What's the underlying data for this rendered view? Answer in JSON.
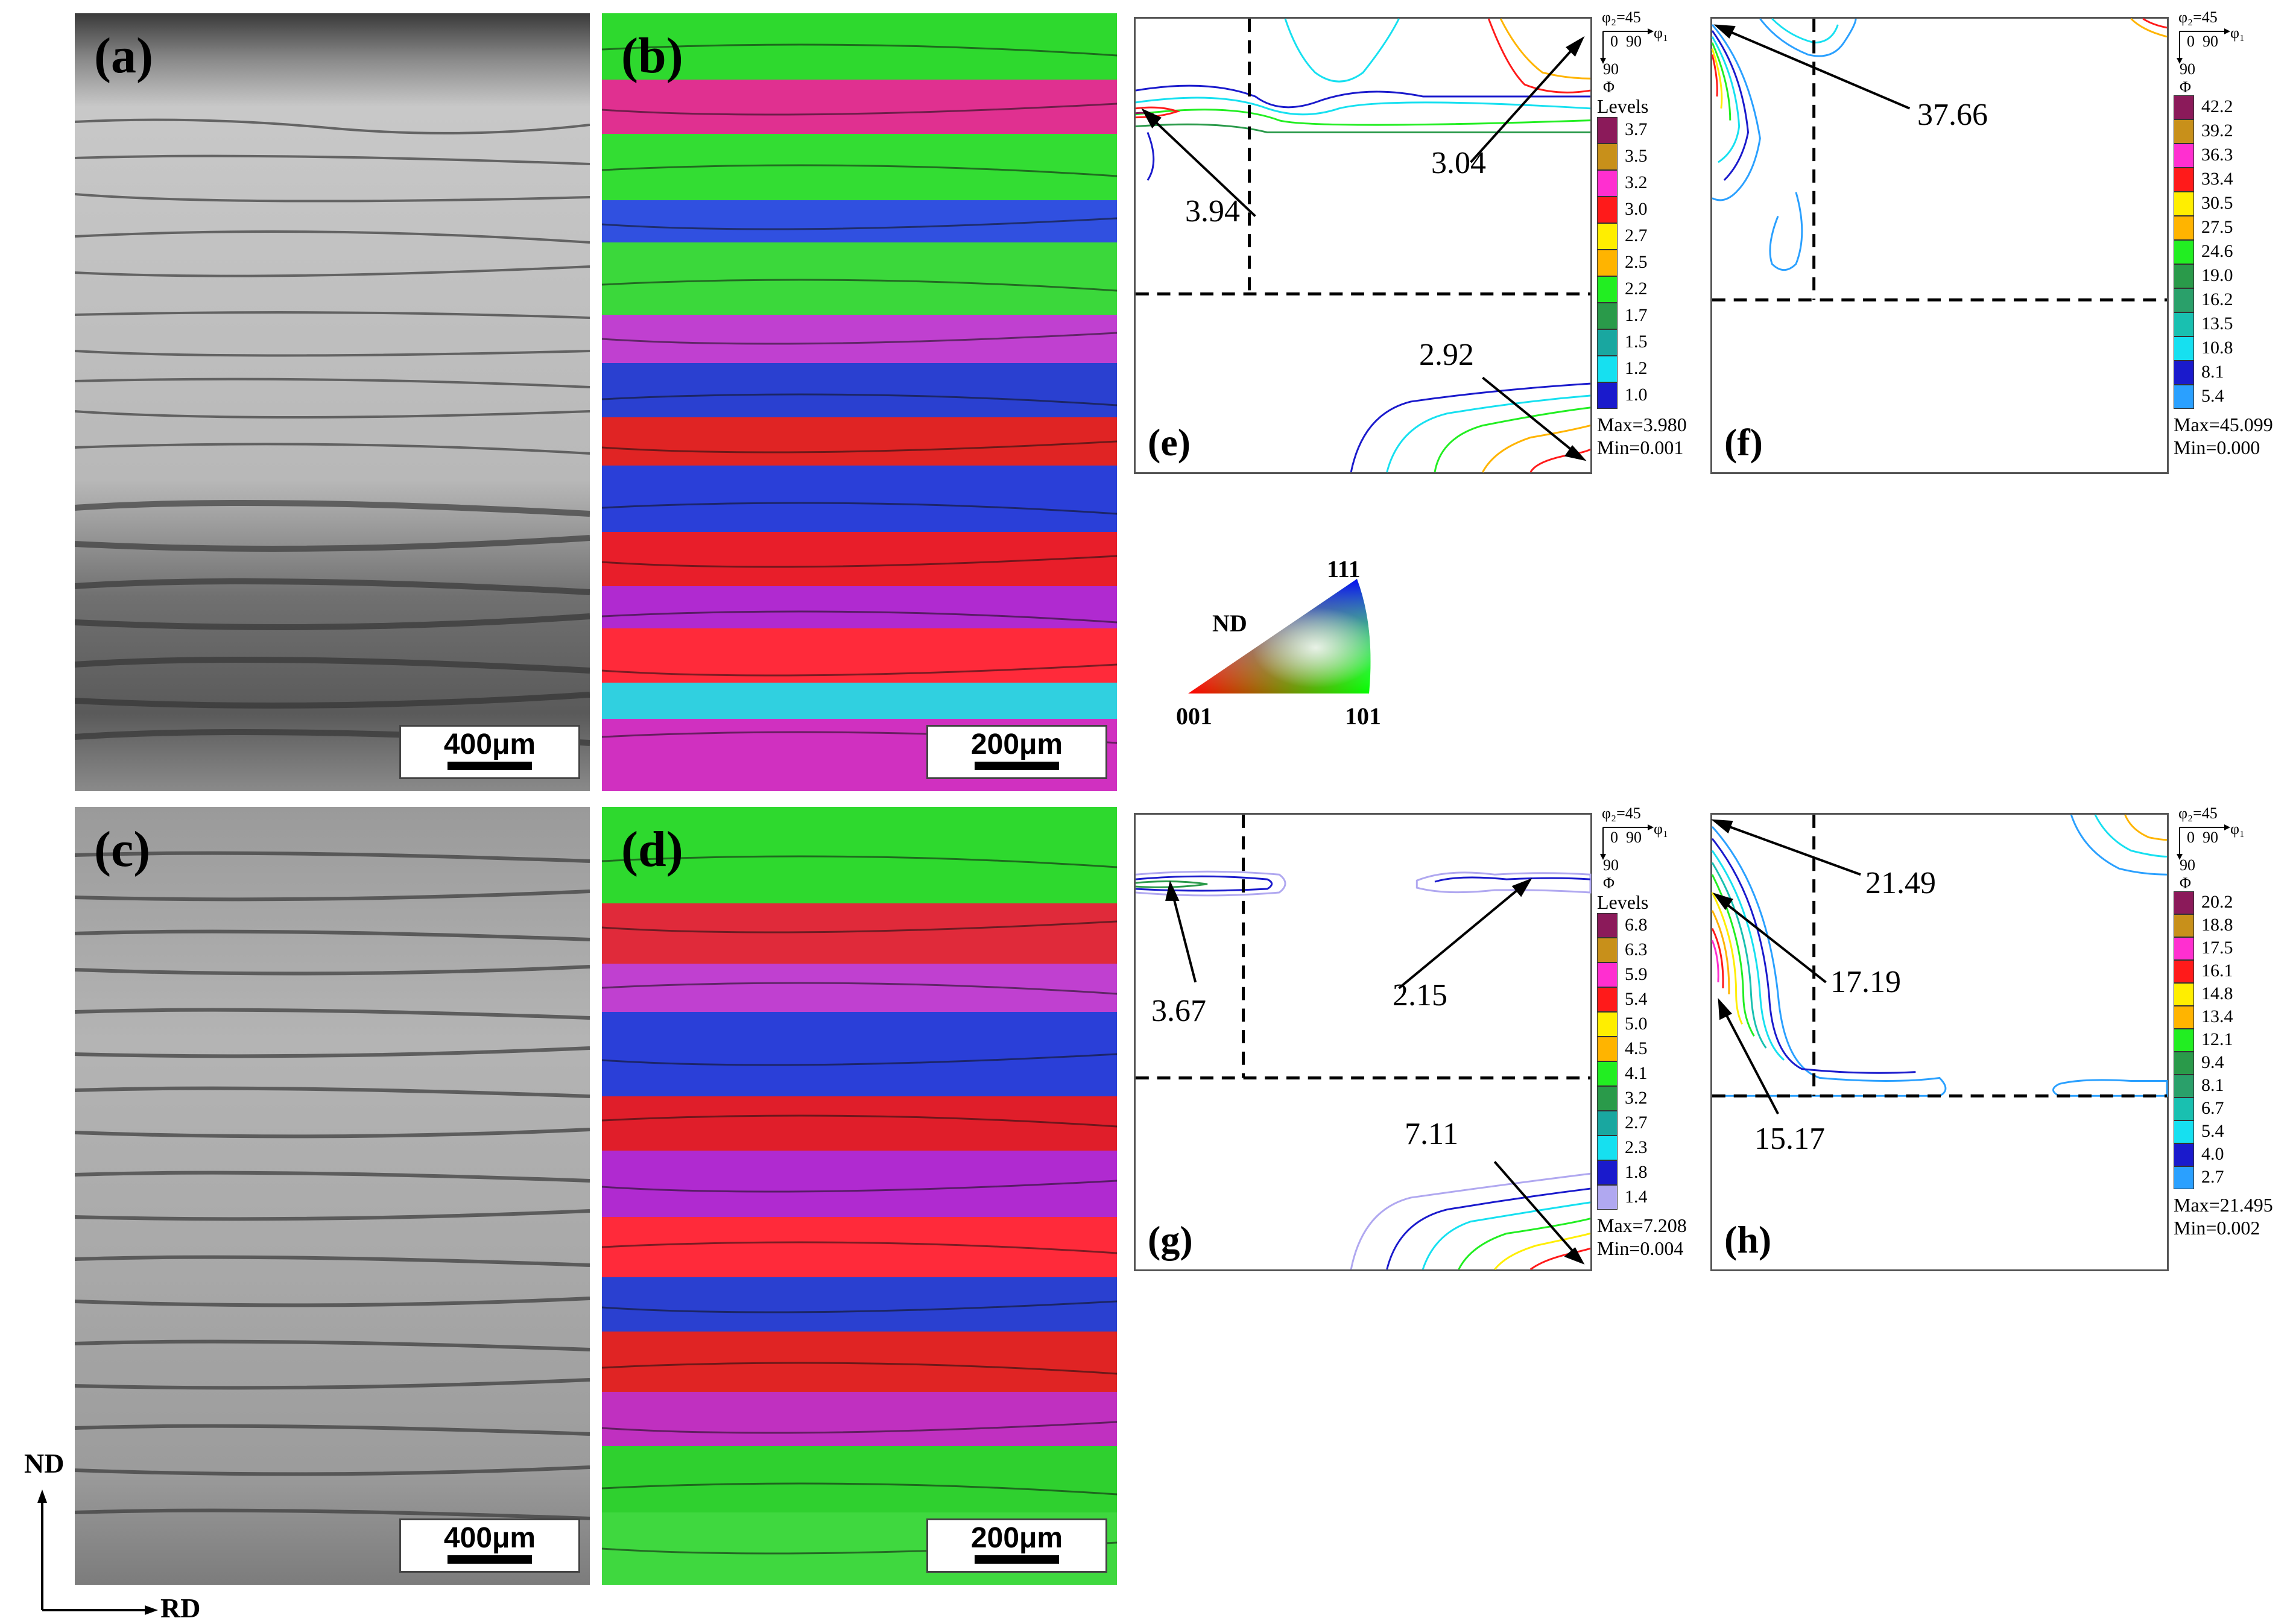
{
  "panels": {
    "a": {
      "label": "(a)",
      "scale": "400μm"
    },
    "b": {
      "label": "(b)",
      "scale": "200μm"
    },
    "c": {
      "label": "(c)",
      "scale": "400μm"
    },
    "d": {
      "label": "(d)",
      "scale": "200μm"
    }
  },
  "ipf_key": {
    "nd": "ND",
    "c111": "111",
    "c001": "001",
    "c101": "101"
  },
  "coord_axes": {
    "nd": "ND",
    "rd": "RD"
  },
  "odf_axes": {
    "phi2": "φ₂=45",
    "phi1": "φ₁",
    "zero": "0",
    "ninety_h": "90",
    "ninety_v": "90",
    "Phi": "Φ"
  },
  "odf": {
    "e": {
      "label": "(e)",
      "levels_title": "Levels",
      "levels": [
        "3.7",
        "3.5",
        "3.2",
        "3.0",
        "2.7",
        "2.5",
        "2.2",
        "1.7",
        "1.5",
        "1.2",
        "1.0"
      ],
      "max": "Max=3.980",
      "min": "Min=0.001",
      "peaks": [
        "3.94",
        "3.04",
        "2.92"
      ]
    },
    "f": {
      "label": "(f)",
      "levels_title": "",
      "levels": [
        "42.2",
        "39.2",
        "36.3",
        "33.4",
        "30.5",
        "27.5",
        "24.6",
        "19.0",
        "16.2",
        "13.5",
        "10.8",
        "8.1",
        "5.4"
      ],
      "max": "Max=45.099",
      "min": "Min=0.000",
      "peaks": [
        "37.66"
      ]
    },
    "g": {
      "label": "(g)",
      "levels_title": "Levels",
      "levels": [
        "6.8",
        "6.3",
        "5.9",
        "5.4",
        "5.0",
        "4.5",
        "4.1",
        "3.2",
        "2.7",
        "2.3",
        "1.8",
        "1.4"
      ],
      "max": "Max=7.208",
      "min": "Min=0.004",
      "peaks": [
        "3.67",
        "2.15",
        "7.11"
      ]
    },
    "h": {
      "label": "(h)",
      "levels_title": "",
      "levels": [
        "20.2",
        "18.8",
        "17.5",
        "16.1",
        "14.8",
        "13.4",
        "12.1",
        "9.4",
        "8.1",
        "6.7",
        "5.4",
        "4.0",
        "2.7"
      ],
      "max": "Max=21.495",
      "min": "Min=0.002",
      "peaks": [
        "21.49",
        "17.19",
        "15.17"
      ]
    }
  },
  "colors": {
    "levels11": [
      "#8b1a5a",
      "#c8901a",
      "#ff2fd0",
      "#ff1a1a",
      "#ffee00",
      "#ffb400",
      "#22ee22",
      "#2a9a4a",
      "#19a7a0",
      "#16e0f0",
      "#1a1acc"
    ],
    "levels12": [
      "#8b1a5a",
      "#c8901a",
      "#ff2fd0",
      "#ff1a1a",
      "#ffee00",
      "#ffb400",
      "#22ee22",
      "#2a9a4a",
      "#19a7a0",
      "#16e0f0",
      "#1a1acc",
      "#b0a8f0"
    ],
    "levels13": [
      "#8b1a5a",
      "#c8901a",
      "#ff2fd0",
      "#ff1a1a",
      "#ffee00",
      "#ffb400",
      "#22ee22",
      "#2a9a4a",
      "#2aa06a",
      "#19c0b0",
      "#16e0f0",
      "#1a1acc",
      "#2aa0ff"
    ]
  }
}
